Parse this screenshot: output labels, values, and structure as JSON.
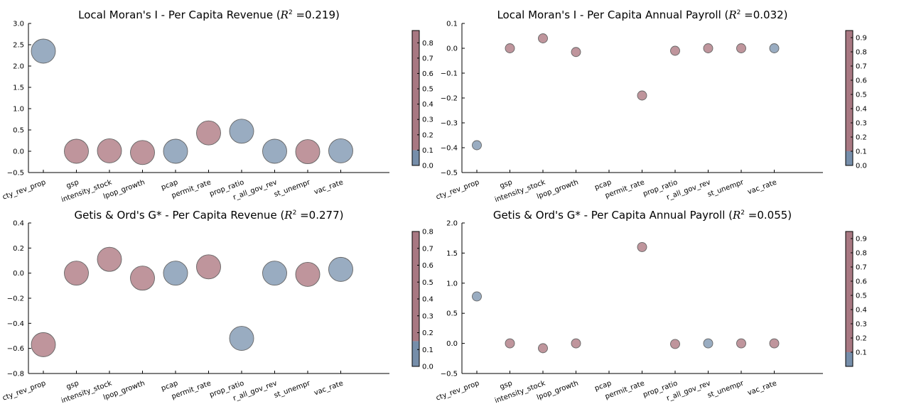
{
  "colors": {
    "high": "#b07f88",
    "low": "#7b95b2",
    "point_high": "#bf959c",
    "point_low": "#99acc1"
  },
  "chart_data": [
    {
      "type": "scatter",
      "title": "Local Moran's I - Per Capita Revenue",
      "r2_symbol": "R",
      "r2_sup": "2",
      "r2_text": " =0.219)",
      "categories": [
        "cty_rev_prop",
        "gsp",
        "intensity_stock",
        "lpop_growth",
        "pcap",
        "permit_rate",
        "prop_ratio",
        "r_all_gov_rev",
        "st_unempr",
        "vac_rate"
      ],
      "values": [
        2.35,
        0.0,
        0.01,
        -0.03,
        0.0,
        0.43,
        0.47,
        0.0,
        -0.01,
        0.01
      ],
      "sizes": [
        0.8,
        0.78,
        0.78,
        0.78,
        0.78,
        0.78,
        0.8,
        0.8,
        0.78,
        0.8
      ],
      "color_values": [
        0.05,
        0.8,
        0.8,
        0.8,
        0.05,
        0.8,
        0.05,
        0.05,
        0.8,
        0.05
      ],
      "ylim": [
        -0.5,
        3.0
      ],
      "yticks": [
        "−0.5",
        "0.0",
        "0.5",
        "1.0",
        "1.5",
        "2.0",
        "2.5",
        "3.0"
      ],
      "colorbar": {
        "ticks": [
          "0.0",
          "0.1",
          "0.2",
          "0.3",
          "0.4",
          "0.5",
          "0.6",
          "0.7",
          "0.8"
        ],
        "max": 0.88,
        "min": 0.0,
        "split": 0.1
      }
    },
    {
      "type": "scatter",
      "title": "Local Moran's I - Per Capita Annual Payroll",
      "r2_symbol": "R",
      "r2_sup": "2",
      "r2_text": " =0.032)",
      "categories": [
        "cty_rev_prop",
        "gsp",
        "intensity_stock",
        "lpop_growth",
        "pcap",
        "permit_rate",
        "prop_ratio",
        "r_all_gov_rev",
        "st_unempr",
        "vac_rate"
      ],
      "values": [
        -0.39,
        0.0,
        0.04,
        -0.015,
        null,
        -0.19,
        -0.01,
        0.0,
        0.0,
        0.0
      ],
      "sizes": [
        0.35,
        0.35,
        0.35,
        0.35,
        0.35,
        0.35,
        0.35,
        0.35,
        0.35,
        0.35
      ],
      "color_values": [
        0.05,
        0.8,
        0.8,
        0.8,
        0.8,
        0.8,
        0.8,
        0.8,
        0.8,
        0.05
      ],
      "ylim": [
        -0.5,
        0.1
      ],
      "yticks": [
        "−0.5",
        "−0.4",
        "−0.3",
        "−0.2",
        "−0.1",
        "0.0",
        "0.1"
      ],
      "colorbar": {
        "ticks": [
          "0.0",
          "0.1",
          "0.2",
          "0.3",
          "0.4",
          "0.5",
          "0.6",
          "0.7",
          "0.8",
          "0.9"
        ],
        "max": 0.95,
        "min": 0.0,
        "split": 0.1
      }
    },
    {
      "type": "scatter",
      "title": "Getis & Ord's G* - Per Capita Revenue",
      "r2_symbol": "R",
      "r2_sup": "2",
      "r2_text": " =0.277)",
      "categories": [
        "cty_rev_prop",
        "gsp",
        "intensity_stock",
        "lpop_growth",
        "pcap",
        "permit_rate",
        "prop_ratio",
        "r_all_gov_rev",
        "st_unempr",
        "vac_rate"
      ],
      "values": [
        -0.57,
        0.0,
        0.11,
        -0.04,
        0.0,
        0.05,
        -0.52,
        0.0,
        -0.01,
        0.03
      ],
      "sizes": [
        0.8,
        0.78,
        0.78,
        0.78,
        0.8,
        0.78,
        0.8,
        0.8,
        0.78,
        0.8
      ],
      "color_values": [
        0.8,
        0.8,
        0.8,
        0.8,
        0.05,
        0.8,
        0.05,
        0.05,
        0.8,
        0.05
      ],
      "ylim": [
        -0.8,
        0.4
      ],
      "yticks": [
        "−0.8",
        "−0.6",
        "−0.4",
        "−0.2",
        "0.0",
        "0.2",
        "0.4"
      ],
      "colorbar": {
        "ticks": [
          "0.0",
          "0.1",
          "0.2",
          "0.3",
          "0.4",
          "0.5",
          "0.6",
          "0.7",
          "0.8"
        ],
        "max": 0.8,
        "min": 0.0,
        "split": 0.15
      }
    },
    {
      "type": "scatter",
      "title": "Getis & Ord's G* - Per Capita Annual Payroll",
      "r2_symbol": "R",
      "r2_sup": "2",
      "r2_text": " =0.055)",
      "categories": [
        "cty_rev_prop",
        "gsp",
        "intensity_stock",
        "lpop_growth",
        "pcap",
        "permit_rate",
        "prop_ratio",
        "r_all_gov_rev",
        "st_unempr",
        "vac_rate"
      ],
      "values": [
        0.78,
        0.0,
        -0.08,
        0.0,
        null,
        1.6,
        -0.01,
        0.0,
        0.0,
        0.0
      ],
      "sizes": [
        0.35,
        0.35,
        0.35,
        0.35,
        0.35,
        0.35,
        0.35,
        0.35,
        0.35,
        0.35
      ],
      "color_values": [
        0.05,
        0.8,
        0.8,
        0.8,
        0.8,
        0.8,
        0.8,
        0.05,
        0.8,
        0.8
      ],
      "ylim": [
        -0.5,
        2.0
      ],
      "yticks": [
        "−0.5",
        "0.0",
        "0.5",
        "1.0",
        "1.5",
        "2.0"
      ],
      "colorbar": {
        "ticks": [
          "0.1",
          "0.2",
          "0.3",
          "0.4",
          "0.5",
          "0.6",
          "0.7",
          "0.8",
          "0.9"
        ],
        "max": 0.95,
        "min": 0.0,
        "split": 0.1
      }
    }
  ]
}
